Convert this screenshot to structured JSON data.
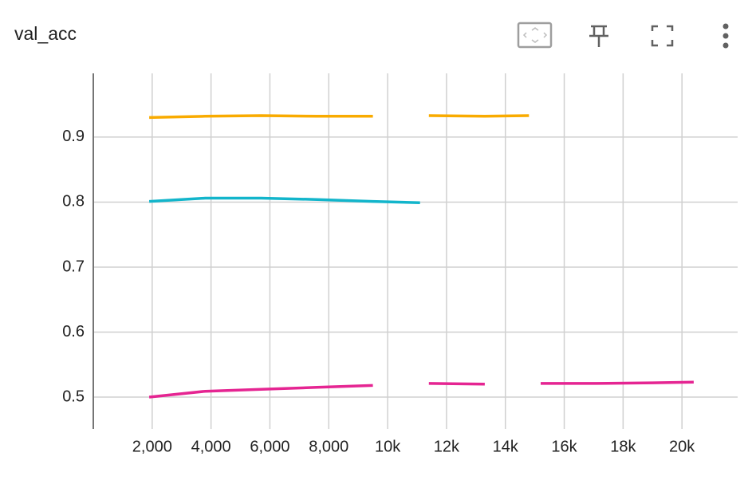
{
  "chart_data": {
    "type": "line",
    "title": "val_acc",
    "x": [
      1900,
      3800,
      5700,
      7600,
      9500,
      11100,
      11400,
      13300,
      14800,
      15200,
      17100,
      19000,
      20400
    ],
    "series": [
      {
        "color": "#f9ab00",
        "values": [
          0.93,
          0.932,
          0.933,
          0.932,
          0.932,
          null,
          0.933,
          0.932,
          0.933,
          null,
          null,
          null,
          null
        ]
      },
      {
        "color": "#12b5cb",
        "values": [
          0.801,
          0.806,
          0.806,
          0.804,
          0.801,
          0.799,
          null,
          null,
          null,
          null,
          null,
          null,
          null
        ]
      },
      {
        "color": "#e52592",
        "values": [
          0.5,
          0.509,
          0.512,
          0.515,
          0.518,
          null,
          0.521,
          0.52,
          null,
          0.521,
          0.521,
          0.522,
          0.523
        ]
      }
    ],
    "xlim": [
      0,
      22000
    ],
    "ylim": [
      0.451,
      0.998
    ],
    "xticks": [
      {
        "value": 2000,
        "label": "2,000"
      },
      {
        "value": 4000,
        "label": "4,000"
      },
      {
        "value": 6000,
        "label": "6,000"
      },
      {
        "value": 8000,
        "label": "8,000"
      },
      {
        "value": 10000,
        "label": "10k"
      },
      {
        "value": 12000,
        "label": "12k"
      },
      {
        "value": 14000,
        "label": "14k"
      },
      {
        "value": 16000,
        "label": "16k"
      },
      {
        "value": 18000,
        "label": "18k"
      },
      {
        "value": 20000,
        "label": "20k"
      }
    ],
    "yticks": [
      0.5,
      0.6,
      0.7,
      0.8,
      0.9
    ],
    "grid": true
  }
}
